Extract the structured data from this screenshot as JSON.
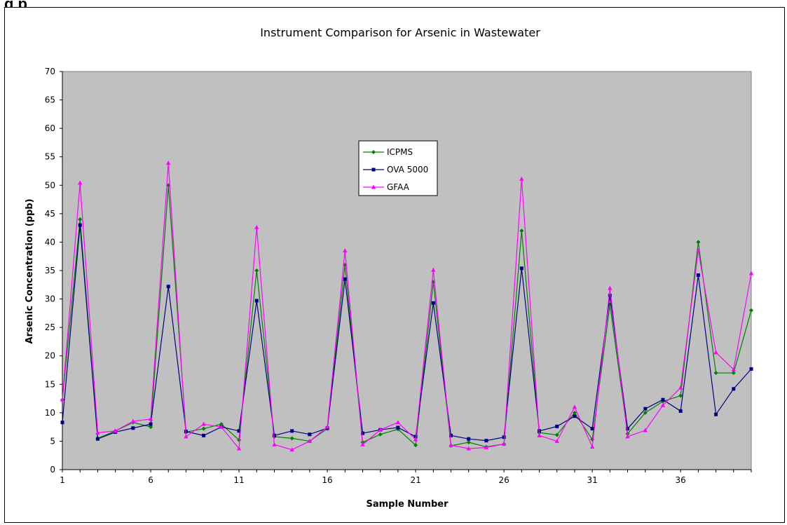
{
  "caption": "g p",
  "chart_data": {
    "type": "line",
    "title": "Instrument Comparison for Arsenic in Wastewater",
    "xlabel": "Sample Number",
    "ylabel": "Arsenic Concentration (ppb)",
    "xlim": [
      1,
      40
    ],
    "ylim": [
      0,
      70
    ],
    "x_ticks": [
      1,
      6,
      11,
      16,
      21,
      26,
      31,
      36
    ],
    "y_ticks": [
      0,
      5,
      10,
      15,
      20,
      25,
      30,
      35,
      40,
      45,
      50,
      55,
      60,
      65,
      70
    ],
    "plot_background": "#c0c0c0",
    "grid": false,
    "legend_position": "inside-top-center",
    "x": [
      1,
      2,
      3,
      4,
      5,
      6,
      7,
      8,
      9,
      10,
      11,
      12,
      13,
      14,
      15,
      16,
      17,
      18,
      19,
      20,
      21,
      22,
      23,
      24,
      25,
      26,
      27,
      28,
      29,
      30,
      31,
      32,
      33,
      34,
      35,
      36,
      37,
      38,
      39,
      40
    ],
    "series": [
      {
        "name": "ICPMS",
        "color": "#008000",
        "marker": "diamond",
        "values": [
          12.3,
          44.0,
          5.5,
          6.8,
          8.3,
          7.5,
          50.0,
          6.6,
          7.2,
          8.0,
          5.2,
          35.0,
          5.8,
          5.5,
          5.0,
          7.2,
          36.0,
          4.8,
          6.2,
          7.1,
          4.3,
          33.0,
          4.2,
          4.8,
          4.0,
          4.5,
          42.0,
          6.5,
          6.1,
          10.0,
          5.3,
          29.0,
          6.3,
          10.0,
          12.0,
          13.0,
          40.0,
          17.0,
          17.0,
          28.0
        ]
      },
      {
        "name": "OVA 5000",
        "color": "#000080",
        "marker": "square",
        "values": [
          8.3,
          43.0,
          5.4,
          6.6,
          7.3,
          8.0,
          32.2,
          6.7,
          6.0,
          7.5,
          6.8,
          29.7,
          6.0,
          6.8,
          6.2,
          7.3,
          33.5,
          6.4,
          7.0,
          7.4,
          5.8,
          29.3,
          6.0,
          5.4,
          5.1,
          5.7,
          35.4,
          6.8,
          7.6,
          9.4,
          7.2,
          30.6,
          7.2,
          10.7,
          12.3,
          10.3,
          34.2,
          9.7,
          14.2,
          17.7
        ]
      },
      {
        "name": "GFAA",
        "color": "#ff00ff",
        "marker": "triangle",
        "values": [
          12.3,
          50.4,
          6.5,
          6.8,
          8.5,
          8.9,
          53.9,
          5.8,
          8.0,
          7.5,
          3.7,
          42.6,
          4.4,
          3.5,
          5.0,
          7.5,
          38.5,
          4.4,
          7.0,
          8.3,
          5.3,
          35.1,
          4.3,
          3.7,
          3.9,
          4.5,
          51.1,
          6.0,
          5.0,
          11.0,
          4.0,
          31.9,
          5.8,
          6.9,
          11.3,
          14.4,
          38.5,
          20.6,
          17.6,
          34.5
        ]
      }
    ]
  }
}
